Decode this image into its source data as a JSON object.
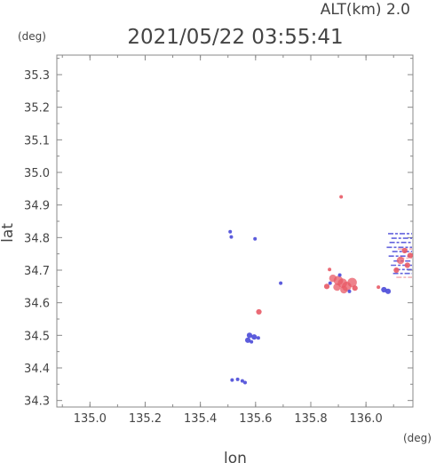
{
  "chart_data": {
    "type": "scatter",
    "title": "2021/05/22 03:55:41",
    "altitude_label": "ALT(km) 2.0",
    "xlabel": "lon",
    "ylabel": "lat",
    "x_unit": "(deg)",
    "y_unit": "(deg)",
    "xlim": [
      134.88,
      136.17
    ],
    "ylim": [
      34.28,
      35.36
    ],
    "x_ticks": [
      135.0,
      135.2,
      135.4,
      135.6,
      135.8,
      136.0
    ],
    "x_tick_labels": [
      "135.0",
      "135.2",
      "135.4",
      "135.6",
      "135.8",
      "136.0"
    ],
    "y_ticks": [
      34.3,
      34.4,
      34.5,
      34.6,
      34.7,
      34.8,
      34.9,
      35.0,
      35.1,
      35.2,
      35.3
    ],
    "y_tick_labels": [
      "34.3",
      "34.4",
      "34.5",
      "34.6",
      "34.7",
      "34.8",
      "34.9",
      "35.0",
      "35.1",
      "35.2",
      "35.3"
    ],
    "grid": false,
    "colors": {
      "positive": "#e85a66",
      "negative": "#4a4ad8",
      "faint_pos": "#f2a8ae",
      "faint_neg": "#a8a8f0",
      "axis": "#888888",
      "text": "#444444"
    },
    "points": [
      {
        "lon": 135.91,
        "lat": 34.925,
        "sign": "pos",
        "size": 1
      },
      {
        "lon": 135.508,
        "lat": 34.818,
        "sign": "neg",
        "size": 1
      },
      {
        "lon": 135.512,
        "lat": 34.802,
        "sign": "neg",
        "size": 1
      },
      {
        "lon": 135.598,
        "lat": 34.796,
        "sign": "neg",
        "size": 1
      },
      {
        "lon": 135.691,
        "lat": 34.66,
        "sign": "neg",
        "size": 1
      },
      {
        "lon": 135.612,
        "lat": 34.572,
        "sign": "pos",
        "size": 2
      },
      {
        "lon": 135.578,
        "lat": 34.5,
        "sign": "neg",
        "size": 2
      },
      {
        "lon": 135.595,
        "lat": 34.495,
        "sign": "neg",
        "size": 2
      },
      {
        "lon": 135.572,
        "lat": 34.485,
        "sign": "neg",
        "size": 2
      },
      {
        "lon": 135.585,
        "lat": 34.48,
        "sign": "neg",
        "size": 1
      },
      {
        "lon": 135.61,
        "lat": 34.492,
        "sign": "neg",
        "size": 1
      },
      {
        "lon": 135.515,
        "lat": 34.363,
        "sign": "neg",
        "size": 1
      },
      {
        "lon": 135.535,
        "lat": 34.365,
        "sign": "neg",
        "size": 1
      },
      {
        "lon": 135.552,
        "lat": 34.36,
        "sign": "neg",
        "size": 1
      },
      {
        "lon": 135.562,
        "lat": 34.355,
        "sign": "neg",
        "size": 1
      },
      {
        "lon": 135.88,
        "lat": 34.675,
        "sign": "pos",
        "size": 3
      },
      {
        "lon": 135.9,
        "lat": 34.668,
        "sign": "pos",
        "size": 4
      },
      {
        "lon": 135.915,
        "lat": 34.66,
        "sign": "pos",
        "size": 4
      },
      {
        "lon": 135.93,
        "lat": 34.65,
        "sign": "pos",
        "size": 4
      },
      {
        "lon": 135.95,
        "lat": 34.662,
        "sign": "pos",
        "size": 4
      },
      {
        "lon": 135.895,
        "lat": 34.648,
        "sign": "pos",
        "size": 3
      },
      {
        "lon": 135.92,
        "lat": 34.64,
        "sign": "pos",
        "size": 3
      },
      {
        "lon": 135.87,
        "lat": 34.66,
        "sign": "neg",
        "size": 1
      },
      {
        "lon": 135.858,
        "lat": 34.65,
        "sign": "pos",
        "size": 2
      },
      {
        "lon": 135.905,
        "lat": 34.685,
        "sign": "neg",
        "size": 1
      },
      {
        "lon": 135.94,
        "lat": 34.635,
        "sign": "neg",
        "size": 1
      },
      {
        "lon": 135.96,
        "lat": 34.645,
        "sign": "pos",
        "size": 2
      },
      {
        "lon": 135.868,
        "lat": 34.702,
        "sign": "pos",
        "size": 1
      },
      {
        "lon": 136.065,
        "lat": 34.64,
        "sign": "neg",
        "size": 2
      },
      {
        "lon": 136.08,
        "lat": 34.635,
        "sign": "neg",
        "size": 2
      },
      {
        "lon": 136.045,
        "lat": 34.648,
        "sign": "pos",
        "size": 1
      },
      {
        "lon": 136.11,
        "lat": 34.7,
        "sign": "pos",
        "size": 2
      },
      {
        "lon": 136.125,
        "lat": 34.73,
        "sign": "pos",
        "size": 3
      },
      {
        "lon": 136.14,
        "lat": 34.76,
        "sign": "pos",
        "size": 2
      },
      {
        "lon": 136.15,
        "lat": 34.715,
        "sign": "pos",
        "size": 2
      },
      {
        "lon": 136.16,
        "lat": 34.745,
        "sign": "pos",
        "size": 2
      }
    ],
    "streaks": [
      {
        "lon_start": 136.08,
        "lon_end": 136.168,
        "lat": 34.812,
        "sign": "neg"
      },
      {
        "lon_start": 136.092,
        "lon_end": 136.168,
        "lat": 34.798,
        "sign": "neg"
      },
      {
        "lon_start": 136.085,
        "lon_end": 136.168,
        "lat": 34.785,
        "sign": "neg"
      },
      {
        "lon_start": 136.075,
        "lon_end": 136.168,
        "lat": 34.77,
        "sign": "neg"
      },
      {
        "lon_start": 136.095,
        "lon_end": 136.168,
        "lat": 34.757,
        "sign": "neg"
      },
      {
        "lon_start": 136.082,
        "lon_end": 136.168,
        "lat": 34.743,
        "sign": "neg"
      },
      {
        "lon_start": 136.1,
        "lon_end": 136.168,
        "lat": 34.728,
        "sign": "neg"
      },
      {
        "lon_start": 136.09,
        "lon_end": 136.168,
        "lat": 34.715,
        "sign": "neg"
      },
      {
        "lon_start": 136.105,
        "lon_end": 136.168,
        "lat": 34.702,
        "sign": "neg"
      },
      {
        "lon_start": 136.098,
        "lon_end": 136.168,
        "lat": 34.69,
        "sign": "neg"
      },
      {
        "lon_start": 136.11,
        "lon_end": 136.168,
        "lat": 34.678,
        "sign": "pos"
      },
      {
        "lon_start": 136.115,
        "lon_end": 136.168,
        "lat": 34.765,
        "sign": "pos"
      },
      {
        "lon_start": 136.12,
        "lon_end": 136.168,
        "lat": 34.737,
        "sign": "pos"
      }
    ]
  }
}
